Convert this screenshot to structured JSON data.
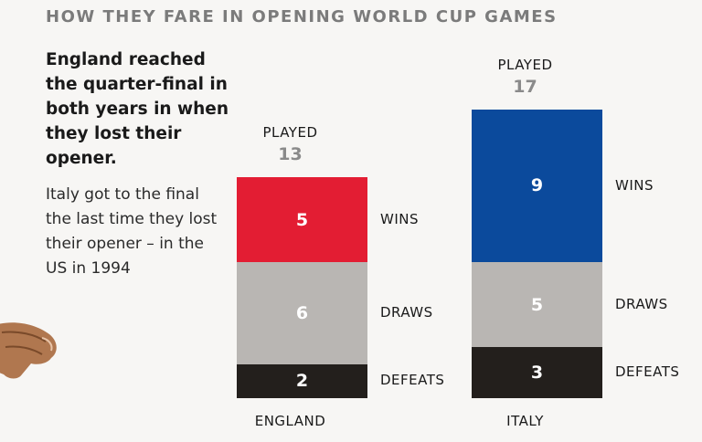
{
  "title": "HOW THEY FARE IN OPENING WORLD CUP GAMES",
  "lead_text": "England reached the quarter-final in both years in when they lost their opener.",
  "body_text": "Italy got to the final the last time they lost their opener – in the US in 1994",
  "chart_data": {
    "type": "bar",
    "stacked": true,
    "title": "HOW THEY FARE IN OPENING WORLD CUP GAMES",
    "played_label": "PLAYED",
    "categories": [
      "ENGLAND",
      "ITALY"
    ],
    "played": [
      13,
      17
    ],
    "series": [
      {
        "name": "WINS",
        "values": [
          5,
          9
        ],
        "color": "#e31d33"
      },
      {
        "name": "DRAWS",
        "values": [
          6,
          5
        ],
        "color": "#b9b6b3"
      },
      {
        "name": "DEFEATS",
        "values": [
          2,
          3
        ],
        "color": "#231f1c"
      }
    ]
  },
  "colors": {
    "background": "#f7f6f4",
    "title": "#7b7b7b",
    "italy_wins": "#0b4a9c",
    "played_value": "#8a8a8a"
  },
  "decoration": {
    "hand_icon": "pointing-hand-photo"
  }
}
